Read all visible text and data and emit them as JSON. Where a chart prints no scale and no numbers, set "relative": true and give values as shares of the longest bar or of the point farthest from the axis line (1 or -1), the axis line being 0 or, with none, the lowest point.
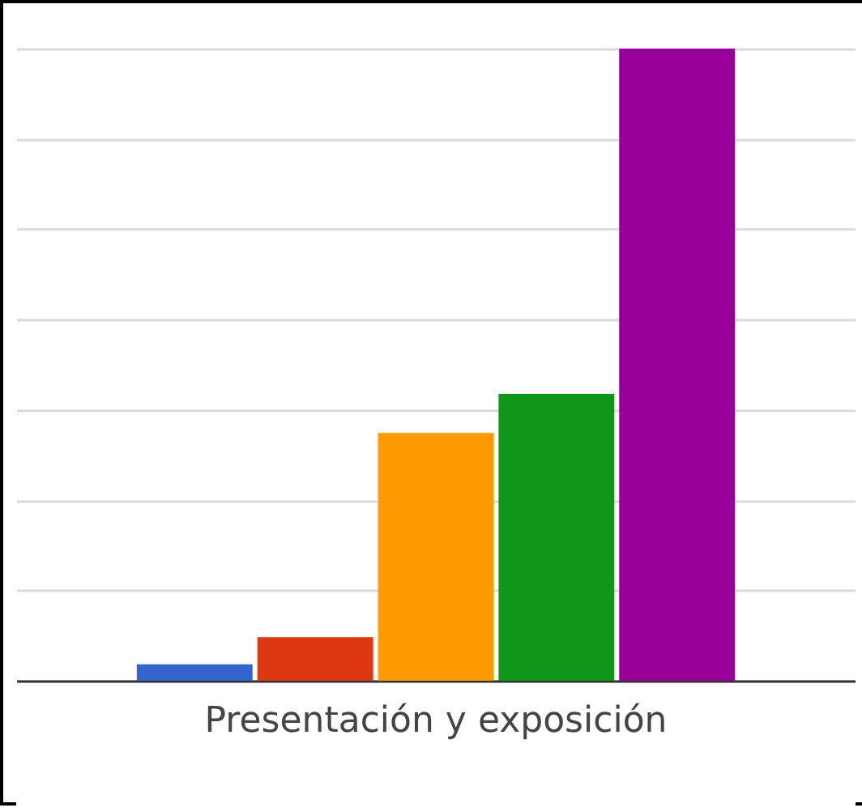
{
  "chart_data": {
    "type": "bar",
    "relative": true,
    "grid": true,
    "legend": false,
    "categories": [
      null,
      null,
      "Presentación y exposición",
      null,
      null
    ],
    "values": [
      0.026,
      0.069,
      0.392,
      0.454,
      1
    ],
    "colors": [
      "#3366cc",
      "#dc3912",
      "#ff9900",
      "#109618",
      "#990099"
    ]
  }
}
